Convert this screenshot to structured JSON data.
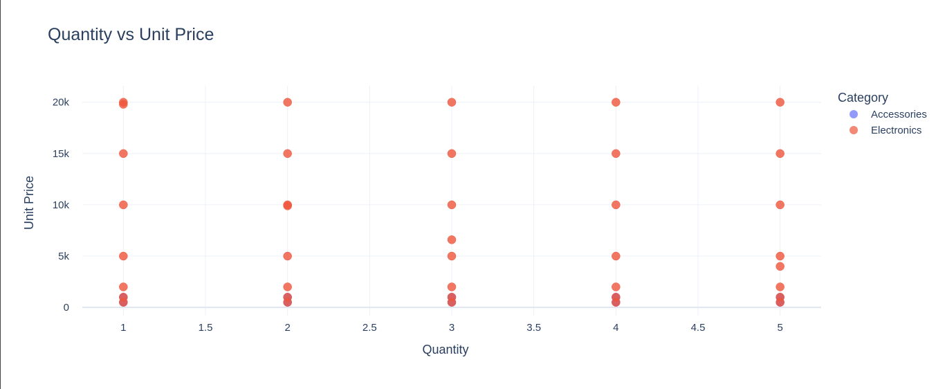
{
  "chart_data": {
    "type": "scatter",
    "title": "Quantity vs Unit Price",
    "xlabel": "Quantity",
    "ylabel": "Unit Price",
    "xlim": [
      0.75,
      5.25
    ],
    "ylim": [
      -800,
      21600
    ],
    "xticks": [
      1,
      1.5,
      2,
      2.5,
      3,
      3.5,
      4,
      4.5,
      5
    ],
    "xtick_labels": [
      "1",
      "1.5",
      "2",
      "2.5",
      "3",
      "3.5",
      "4",
      "4.5",
      "5"
    ],
    "yticks": [
      0,
      5000,
      10000,
      15000,
      20000
    ],
    "ytick_labels": [
      "0",
      "5k",
      "10k",
      "15k",
      "20k"
    ],
    "grid": true,
    "legend": {
      "title": "Category",
      "placement": "right"
    },
    "series": [
      {
        "name": "Accessories",
        "color": "#636efa",
        "x": [
          1,
          1,
          2,
          2,
          3,
          3,
          4,
          4,
          5,
          5
        ],
        "y": [
          500,
          1000,
          500,
          1000,
          500,
          1000,
          500,
          1000,
          500,
          1000
        ]
      },
      {
        "name": "Electronics",
        "color": "#ef553b",
        "x": [
          1,
          1,
          1,
          1,
          1,
          1,
          1,
          1,
          2,
          2,
          2,
          2,
          2,
          2,
          2,
          2,
          3,
          3,
          3,
          3,
          3,
          3,
          3,
          3,
          4,
          4,
          4,
          4,
          4,
          4,
          4,
          5,
          5,
          5,
          5,
          5,
          5,
          5,
          5
        ],
        "y": [
          20000,
          19800,
          15000,
          10000,
          5000,
          2000,
          1000,
          500,
          20000,
          15000,
          10000,
          9900,
          5000,
          2000,
          1000,
          500,
          20000,
          15000,
          10000,
          6600,
          5000,
          2000,
          1000,
          500,
          20000,
          15000,
          10000,
          5000,
          2000,
          1000,
          500,
          20000,
          15000,
          10000,
          5000,
          4000,
          2000,
          1000,
          500
        ]
      }
    ]
  }
}
